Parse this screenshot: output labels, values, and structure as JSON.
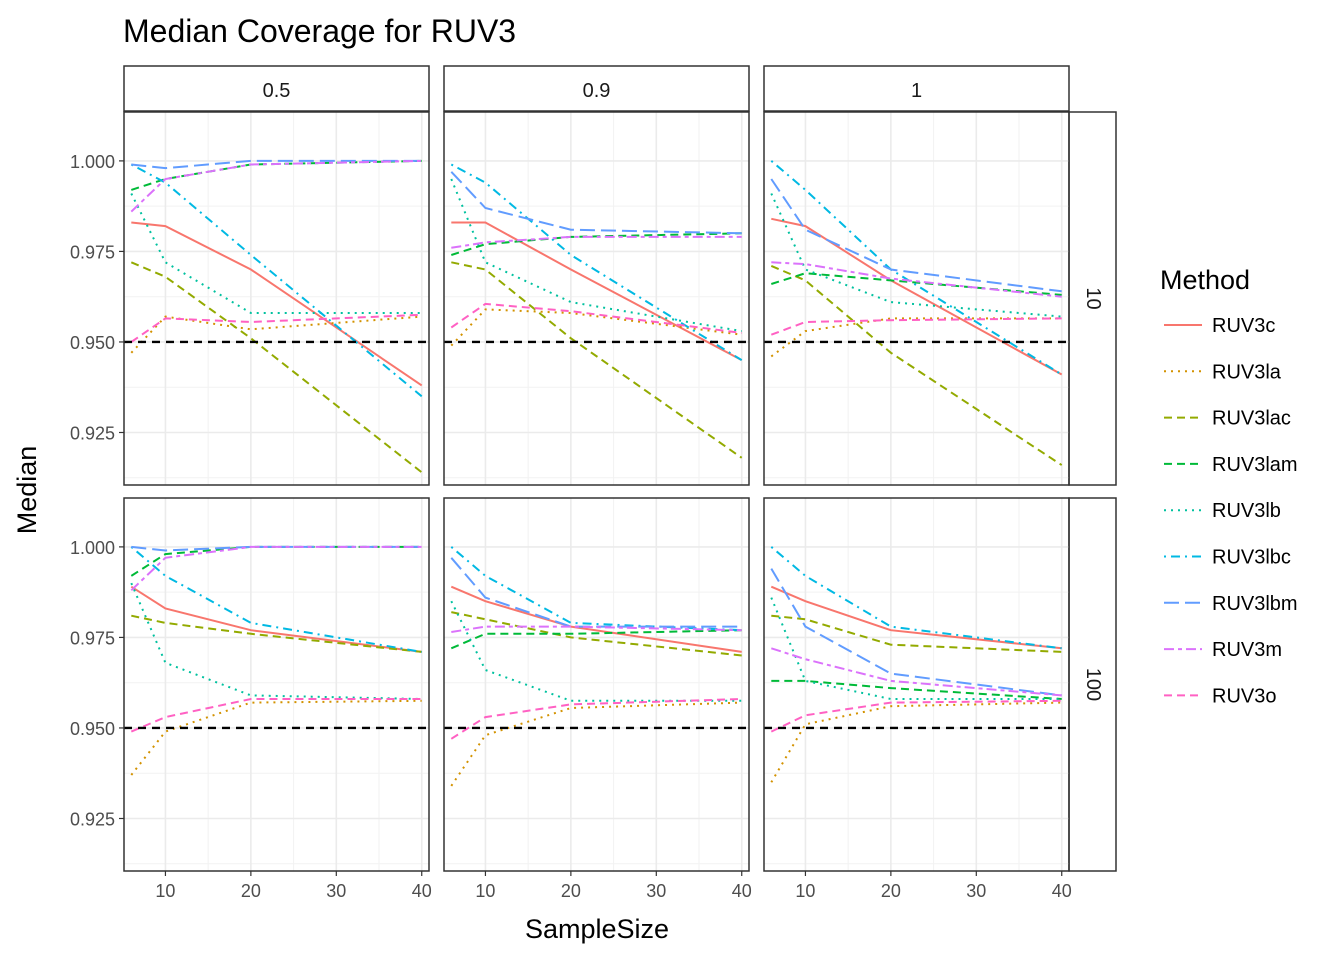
{
  "chart_data": {
    "type": "line",
    "title": "Median Coverage for RUV3",
    "xlabel": "SampleSize",
    "ylabel": "Median",
    "x": [
      6,
      10,
      20,
      40
    ],
    "x_ticks": [
      10,
      20,
      30,
      40
    ],
    "x_tick_labels": [
      "10",
      "20",
      "30",
      "40"
    ],
    "xlim": [
      5.15,
      40.85
    ],
    "ylim": [
      0.9105,
      1.0135
    ],
    "y_ticks": [
      0.925,
      0.95,
      0.975,
      1.0
    ],
    "y_tick_labels": [
      "0.925",
      "0.950",
      "0.975",
      "1.000"
    ],
    "reference_line": 0.95,
    "grid": true,
    "col_facets": [
      "0.5",
      "0.9",
      "1"
    ],
    "row_facets": [
      "10",
      "100"
    ],
    "legend": {
      "title": "Method",
      "position": "right"
    },
    "series": [
      {
        "name": "RUV3c",
        "color": "#F8766D",
        "dash": "solid"
      },
      {
        "name": "RUV3la",
        "color": "#D39200",
        "dash": "dotted"
      },
      {
        "name": "RUV3lac",
        "color": "#93AA00",
        "dash": "dashed"
      },
      {
        "name": "RUV3lam",
        "color": "#00BA38",
        "dash": "dashed"
      },
      {
        "name": "RUV3lb",
        "color": "#00C19F",
        "dash": "dotted"
      },
      {
        "name": "RUV3lbc",
        "color": "#00B9E3",
        "dash": "dotdash"
      },
      {
        "name": "RUV3lbm",
        "color": "#619CFF",
        "dash": "longdash"
      },
      {
        "name": "RUV3m",
        "color": "#DB72FB",
        "dash": "twodash"
      },
      {
        "name": "RUV3o",
        "color": "#FF61C3",
        "dash": "dashed"
      }
    ],
    "panels": [
      {
        "col": 0,
        "row": 0,
        "values": {
          "RUV3c": [
            0.983,
            0.982,
            0.97,
            0.938
          ],
          "RUV3la": [
            0.947,
            0.957,
            0.9535,
            0.957
          ],
          "RUV3lac": [
            0.972,
            0.968,
            0.951,
            0.914
          ],
          "RUV3lam": [
            0.992,
            0.995,
            0.999,
            1.0
          ],
          "RUV3lb": [
            0.991,
            0.972,
            0.958,
            0.958
          ],
          "RUV3lbc": [
            0.999,
            0.994,
            0.974,
            0.935
          ],
          "RUV3lbm": [
            0.999,
            0.998,
            1.0,
            1.0
          ],
          "RUV3m": [
            0.986,
            0.995,
            0.999,
            1.0
          ],
          "RUV3o": [
            0.95,
            0.9565,
            0.9555,
            0.9575
          ]
        }
      },
      {
        "col": 1,
        "row": 0,
        "values": {
          "RUV3c": [
            0.983,
            0.983,
            0.97,
            0.945
          ],
          "RUV3la": [
            0.949,
            0.959,
            0.958,
            0.952
          ],
          "RUV3lac": [
            0.972,
            0.97,
            0.951,
            0.918
          ],
          "RUV3lam": [
            0.974,
            0.977,
            0.979,
            0.98
          ],
          "RUV3lb": [
            0.995,
            0.972,
            0.961,
            0.953
          ],
          "RUV3lbc": [
            0.999,
            0.994,
            0.974,
            0.945
          ],
          "RUV3lbm": [
            0.997,
            0.987,
            0.981,
            0.98
          ],
          "RUV3m": [
            0.976,
            0.9775,
            0.979,
            0.979
          ],
          "RUV3o": [
            0.954,
            0.9605,
            0.9585,
            0.9525
          ]
        }
      },
      {
        "col": 2,
        "row": 0,
        "values": {
          "RUV3c": [
            0.984,
            0.982,
            0.967,
            0.941
          ],
          "RUV3la": [
            0.946,
            0.953,
            0.9565,
            0.9565
          ],
          "RUV3lac": [
            0.971,
            0.967,
            0.947,
            0.916
          ],
          "RUV3lam": [
            0.966,
            0.969,
            0.967,
            0.963
          ],
          "RUV3lb": [
            0.991,
            0.97,
            0.961,
            0.957
          ],
          "RUV3lbc": [
            1.0,
            0.992,
            0.97,
            0.941
          ],
          "RUV3lbm": [
            0.995,
            0.981,
            0.97,
            0.964
          ],
          "RUV3m": [
            0.972,
            0.9715,
            0.9675,
            0.9625
          ],
          "RUV3o": [
            0.952,
            0.9555,
            0.956,
            0.9565
          ]
        }
      },
      {
        "col": 0,
        "row": 1,
        "values": {
          "RUV3c": [
            0.989,
            0.983,
            0.977,
            0.971
          ],
          "RUV3la": [
            0.937,
            0.949,
            0.957,
            0.9575
          ],
          "RUV3lac": [
            0.981,
            0.979,
            0.976,
            0.971
          ],
          "RUV3lam": [
            0.992,
            0.998,
            1.0,
            1.0
          ],
          "RUV3lb": [
            0.99,
            0.968,
            0.959,
            0.958
          ],
          "RUV3lbc": [
            1.0,
            0.992,
            0.979,
            0.971
          ],
          "RUV3lbm": [
            1.0,
            0.999,
            1.0,
            1.0
          ],
          "RUV3m": [
            0.988,
            0.997,
            1.0,
            1.0
          ],
          "RUV3o": [
            0.949,
            0.953,
            0.958,
            0.958
          ]
        }
      },
      {
        "col": 1,
        "row": 1,
        "values": {
          "RUV3c": [
            0.989,
            0.985,
            0.978,
            0.971
          ],
          "RUV3la": [
            0.934,
            0.948,
            0.9555,
            0.957
          ],
          "RUV3lac": [
            0.982,
            0.98,
            0.975,
            0.97
          ],
          "RUV3lam": [
            0.972,
            0.976,
            0.976,
            0.977
          ],
          "RUV3lb": [
            0.985,
            0.966,
            0.9575,
            0.9575
          ],
          "RUV3lbc": [
            1.0,
            0.992,
            0.979,
            0.977
          ],
          "RUV3lbm": [
            0.997,
            0.986,
            0.978,
            0.978
          ],
          "RUV3m": [
            0.9765,
            0.978,
            0.978,
            0.977
          ],
          "RUV3o": [
            0.947,
            0.953,
            0.9565,
            0.958
          ]
        }
      },
      {
        "col": 2,
        "row": 1,
        "values": {
          "RUV3c": [
            0.989,
            0.985,
            0.977,
            0.972
          ],
          "RUV3la": [
            0.935,
            0.951,
            0.956,
            0.957
          ],
          "RUV3lac": [
            0.981,
            0.98,
            0.973,
            0.971
          ],
          "RUV3lam": [
            0.963,
            0.963,
            0.961,
            0.958
          ],
          "RUV3lb": [
            0.986,
            0.963,
            0.958,
            0.958
          ],
          "RUV3lbc": [
            1.0,
            0.992,
            0.978,
            0.972
          ],
          "RUV3lbm": [
            0.994,
            0.978,
            0.965,
            0.959
          ],
          "RUV3m": [
            0.972,
            0.969,
            0.963,
            0.959
          ],
          "RUV3o": [
            0.949,
            0.9535,
            0.957,
            0.9575
          ]
        }
      }
    ]
  }
}
